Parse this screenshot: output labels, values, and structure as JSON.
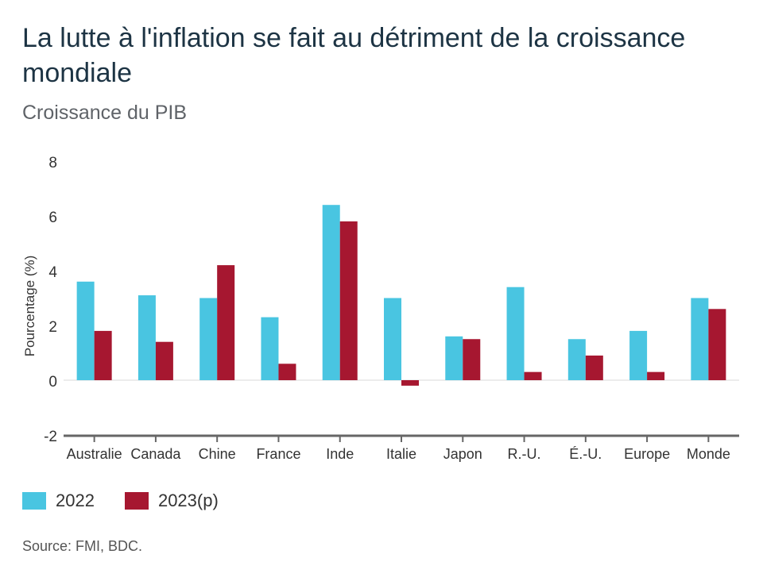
{
  "title": "La lutte à l'inflation se fait au détriment de la croissance mondiale",
  "subtitle": "Croissance du PIB",
  "source": "Source: FMI, BDC.",
  "chart_data": {
    "type": "bar",
    "categories": [
      "Australie",
      "Canada",
      "Chine",
      "France",
      "Inde",
      "Italie",
      "Japon",
      "R.-U.",
      "É.-U.",
      "Europe",
      "Monde"
    ],
    "series": [
      {
        "name": "2022",
        "color": "#49c5e1",
        "values": [
          3.6,
          3.1,
          3.0,
          2.3,
          6.4,
          3.0,
          1.6,
          3.4,
          1.5,
          1.8,
          3.0
        ]
      },
      {
        "name": "2023(p)",
        "color": "#a61730",
        "values": [
          1.8,
          1.4,
          4.2,
          0.6,
          5.8,
          -0.2,
          1.5,
          0.3,
          0.9,
          0.3,
          2.6
        ]
      }
    ],
    "ylabel": "Pourcentage (%)",
    "ylim": [
      -2,
      8
    ],
    "yticks": [
      8,
      6,
      4,
      2,
      0,
      -2
    ],
    "legend_position": "bottom-left",
    "grid": false
  }
}
